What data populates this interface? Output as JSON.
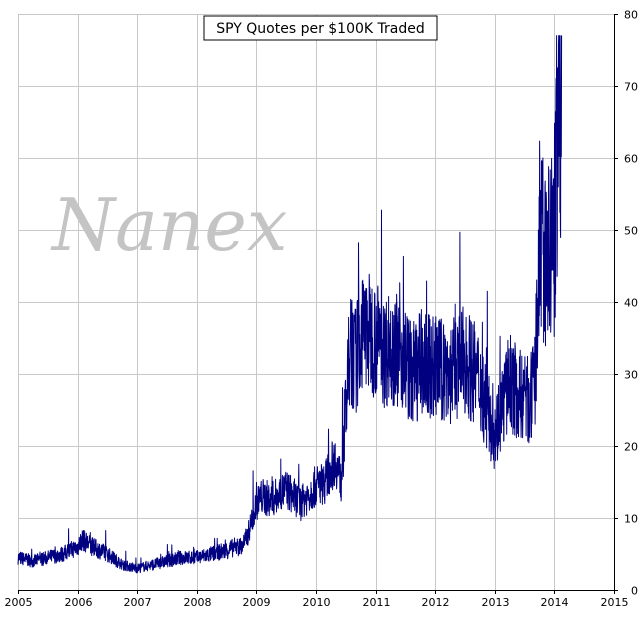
{
  "watermark": "Nanex",
  "chart_data": {
    "type": "line",
    "title": "SPY Quotes per $100K Traded",
    "xlabel": "",
    "ylabel": "",
    "xlim": [
      2005,
      2015
    ],
    "ylim": [
      0,
      80
    ],
    "x_ticks": [
      "2005",
      "2006",
      "2007",
      "2008",
      "2009",
      "2010",
      "2011",
      "2012",
      "2013",
      "2014",
      "2015"
    ],
    "y_ticks": [
      "0",
      "10",
      "20",
      "30",
      "40",
      "50",
      "60",
      "70",
      "80"
    ],
    "y_axis_side": "right",
    "grid": true,
    "series_color": "#000080",
    "series": [
      {
        "x": [
          2005.0,
          2005.25,
          2005.5,
          2005.75,
          2006.0,
          2006.08,
          2006.25,
          2006.5,
          2006.75,
          2007.0,
          2007.25,
          2007.5,
          2007.75,
          2008.0,
          2008.25,
          2008.5,
          2008.65,
          2008.75,
          2008.85,
          2009.0,
          2009.1,
          2009.25,
          2009.5,
          2009.75,
          2010.0,
          2010.15,
          2010.25,
          2010.33,
          2010.42,
          2010.5,
          2010.58,
          2010.67,
          2010.75,
          2010.85,
          2011.0,
          2011.15,
          2011.25,
          2011.42,
          2011.5,
          2011.6,
          2011.75,
          2012.0,
          2012.25,
          2012.5,
          2012.75,
          2012.9,
          2013.0,
          2013.25,
          2013.4,
          2013.5,
          2013.58,
          2013.67,
          2013.75,
          2013.85,
          2013.95,
          2014.0,
          2014.05,
          2014.12
        ],
        "values": [
          4.5,
          4.0,
          4.5,
          5.0,
          6.0,
          7.0,
          6.0,
          5.0,
          3.5,
          3.0,
          3.5,
          4.0,
          4.5,
          4.5,
          5.0,
          5.5,
          6.0,
          6.0,
          7.5,
          12.0,
          13.0,
          12.5,
          14.0,
          12.0,
          14.5,
          15.0,
          17.0,
          18.0,
          15.0,
          25.0,
          33.0,
          32.0,
          35.0,
          36.0,
          35.0,
          33.0,
          34.0,
          33.0,
          32.0,
          30.0,
          31.0,
          31.0,
          30.0,
          32.0,
          29.0,
          24.0,
          22.0,
          29.0,
          27.0,
          27.0,
          26.0,
          28.0,
          48.0,
          45.0,
          47.0,
          50.0,
          60.0,
          67.0
        ]
      }
    ]
  }
}
